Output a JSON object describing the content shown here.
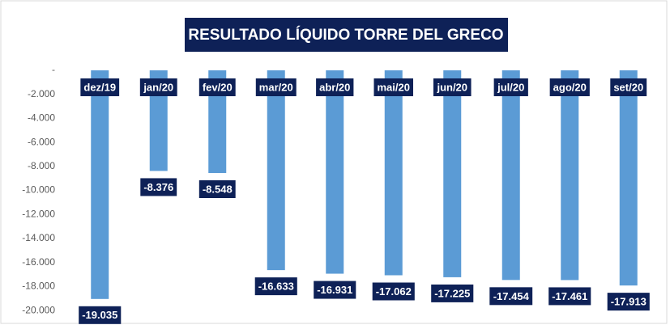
{
  "chart_data": {
    "type": "bar",
    "title": "RESULTADO LÍQUIDO TORRE DEL GRECO",
    "categories": [
      "dez/19",
      "jan/20",
      "fev/20",
      "mar/20",
      "abr/20",
      "mai/20",
      "jun/20",
      "jul/20",
      "ago/20",
      "set/20"
    ],
    "values": [
      -19035,
      -8376,
      -8548,
      -16633,
      -16931,
      -17062,
      -17225,
      -17454,
      -17461,
      -17913
    ],
    "value_labels": [
      "-19.035",
      "-8.376",
      "-8.548",
      "-16.633",
      "-16.931",
      "-17.062",
      "-17.225",
      "-17.454",
      "-17.461",
      "-17.913"
    ],
    "color": "#5b9bd5",
    "label_color": "#0e2157",
    "ylim": [
      -21000,
      0
    ],
    "yticks": [
      {
        "value": 0,
        "label": "-"
      },
      {
        "value": -2000,
        "label": "-2.000"
      },
      {
        "value": -4000,
        "label": "-4.000"
      },
      {
        "value": -6000,
        "label": "-6.000"
      },
      {
        "value": -8000,
        "label": "-8.000"
      },
      {
        "value": -10000,
        "label": "-10.000"
      },
      {
        "value": -12000,
        "label": "-12.000"
      },
      {
        "value": -14000,
        "label": "-14.000"
      },
      {
        "value": -16000,
        "label": "-16.000"
      },
      {
        "value": -18000,
        "label": "-18.000"
      },
      {
        "value": -20000,
        "label": "-20.000"
      }
    ],
    "grid": false
  }
}
